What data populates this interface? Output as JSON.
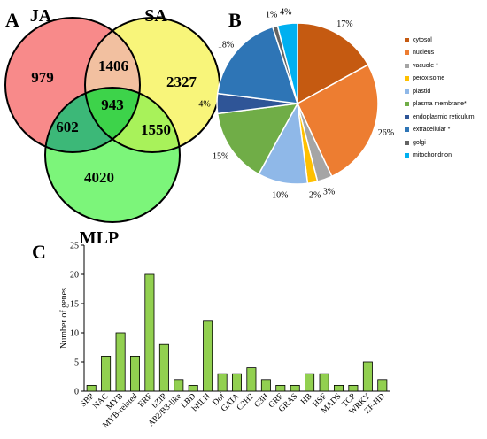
{
  "panels": {
    "a": "A",
    "b": "B",
    "c": "C"
  },
  "venn": {
    "sets": [
      {
        "name": "JA",
        "color": "#f88a8a"
      },
      {
        "name": "SA",
        "color": "#f8f57a"
      },
      {
        "name": "MLP",
        "color": "#7cf57a"
      }
    ],
    "regions": {
      "ja_only": "979",
      "sa_only": "2327",
      "mlp_only": "4020",
      "ja_sa": "1406",
      "ja_mlp": "602",
      "sa_mlp": "1550",
      "all": "943"
    },
    "region_colors": {
      "ja_sa": "#f2c0a0",
      "ja_mlp": "#3cb878",
      "sa_mlp": "#a8f25a",
      "all": "#3dd34a"
    }
  },
  "chart_data": [
    {
      "type": "pie",
      "title": "",
      "slices": [
        {
          "label": "cytosol",
          "value": 17,
          "display": "17%",
          "color": "#c55a11"
        },
        {
          "label": "nucleus",
          "value": 26,
          "display": "26%",
          "color": "#ed7d31"
        },
        {
          "label": "vacuole *",
          "value": 3,
          "display": "3%",
          "color": "#a5a5a5"
        },
        {
          "label": "peroxisome",
          "value": 2,
          "display": "2%",
          "color": "#ffc000"
        },
        {
          "label": "plastid",
          "value": 10,
          "display": "10%",
          "color": "#8fb8e8"
        },
        {
          "label": "plasma membrane*",
          "value": 15,
          "display": "15%",
          "color": "#70ad47"
        },
        {
          "label": "endoplasmic reticulum",
          "value": 4,
          "display": "4%",
          "color": "#2f5597"
        },
        {
          "label": "extracellular *",
          "value": 18,
          "display": "18%",
          "color": "#2e75b6"
        },
        {
          "label": "golgi",
          "value": 1,
          "display": "1%",
          "color": "#636363"
        },
        {
          "label": "mitochondrion",
          "value": 4,
          "display": "4%",
          "color": "#00b0f0"
        }
      ],
      "legend_position": "right"
    },
    {
      "type": "bar",
      "title": "",
      "ylabel": "Number of genes",
      "xlabel": "",
      "ylim": [
        0,
        25
      ],
      "yticks": [
        0,
        5,
        10,
        15,
        20,
        25
      ],
      "grid": false,
      "bar_color": "#92d050",
      "categories": [
        "SBP",
        "NAC",
        "MYB",
        "MYB-related",
        "ERF",
        "bZIP",
        "AP2/B3-like",
        "LBD",
        "bHLH",
        "Dof",
        "GATA",
        "C2H2",
        "C3H",
        "GRF",
        "GRAS",
        "HB",
        "HSF",
        "MADS",
        "TCP",
        "WRKY",
        "ZF-HD"
      ],
      "values": [
        1,
        6,
        10,
        6,
        20,
        8,
        2,
        1,
        12,
        3,
        3,
        4,
        2,
        1,
        1,
        3,
        3,
        1,
        1,
        5,
        2
      ]
    }
  ]
}
